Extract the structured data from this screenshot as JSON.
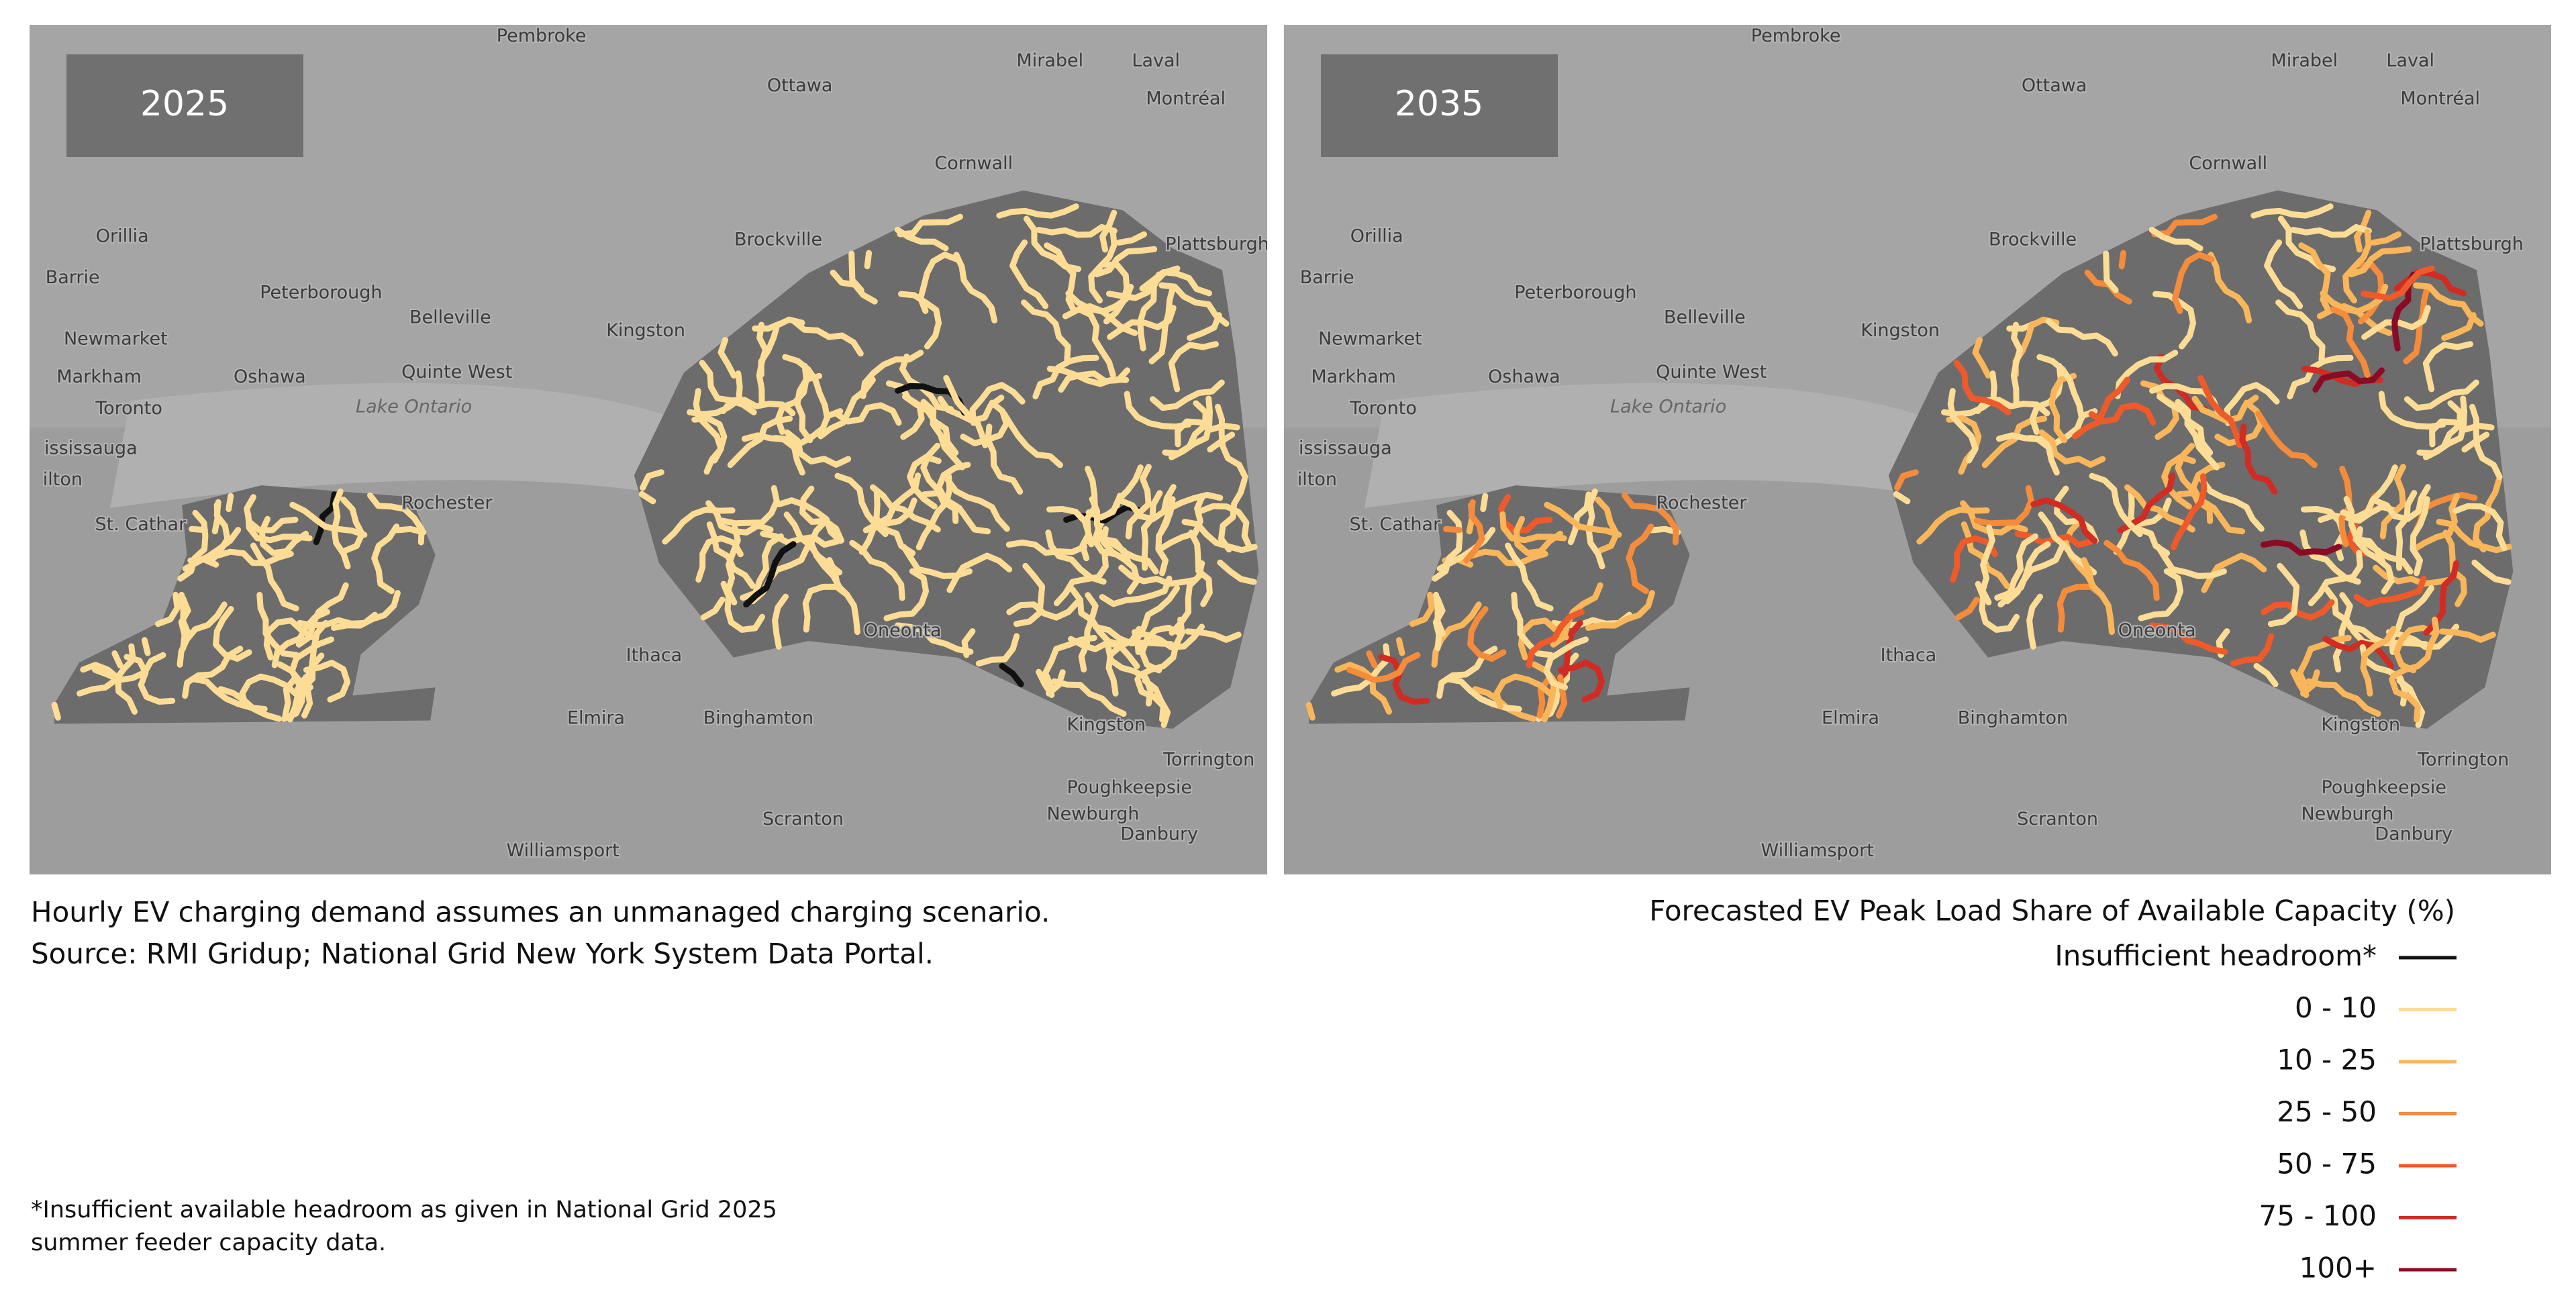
{
  "panels": [
    {
      "label": "2025"
    },
    {
      "label": "2035"
    }
  ],
  "place_labels": [
    "Pembroke",
    "Ottawa",
    "Mirabel",
    "Laval",
    "Montréal",
    "Cornwall",
    "Orillia",
    "Barrie",
    "Peterborough",
    "Belleville",
    "Newmarket",
    "Quinte West",
    "Markham",
    "Oshawa",
    "Kingston",
    "Toronto",
    "Lake Ontario",
    "ississauga",
    "ilton",
    "Brockville",
    "Plattsburgh",
    "Rochester",
    "St. Cathar",
    "Ithaca",
    "Oneonta",
    "Elmira",
    "Binghamton",
    "Kingston",
    "Torrington",
    "Poughkeepsie",
    "Newburgh",
    "Danbury",
    "Scranton",
    "Williamsport"
  ],
  "caption": {
    "lines": [
      "Hourly EV charging demand assumes an unmanaged charging scenario.",
      "Source: RMI Gridup; National Grid New York System Data Portal."
    ]
  },
  "footnote": {
    "lines": [
      "*Insufficient available headroom as given in National Grid 2025",
      "summer feeder capacity data."
    ]
  },
  "legend": {
    "title": "Forecasted EV Peak Load Share of Available Capacity (%)",
    "items": [
      {
        "label": "Insufficient headroom*",
        "color": "#111111"
      },
      {
        "label": "0 - 10",
        "color": "#fddc95"
      },
      {
        "label": "10 - 25",
        "color": "#f9b65a"
      },
      {
        "label": "25 - 50",
        "color": "#f48c3c"
      },
      {
        "label": "50 - 75",
        "color": "#ef5a2a"
      },
      {
        "label": "75 - 100",
        "color": "#d02c23"
      },
      {
        "label": "100+",
        "color": "#8b0b24"
      }
    ]
  }
}
